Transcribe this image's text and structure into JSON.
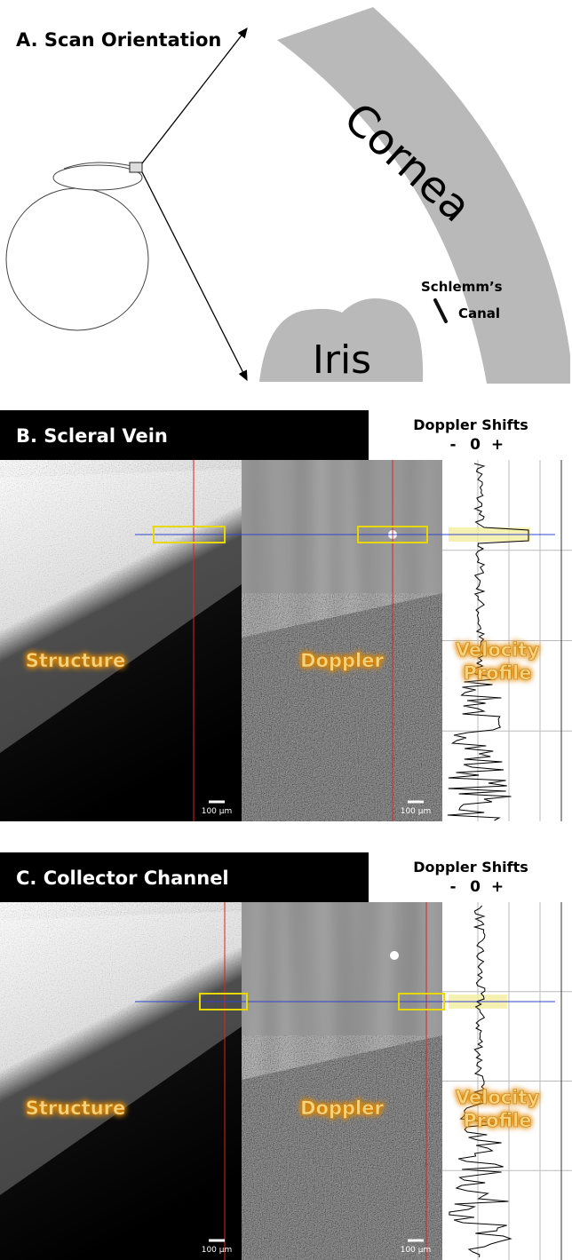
{
  "panel_a": {
    "title": "A.  Scan Orientation",
    "cornea": "Cornea",
    "schlemm": "Schlemm’s",
    "canal": "Canal",
    "iris": "Iris"
  },
  "panel_b": {
    "title": "B.  Scleral Vein",
    "axis_title": "Doppler Shifts",
    "axis_labels": [
      "-",
      "0",
      "+"
    ],
    "structure": "Structure",
    "doppler": "Doppler",
    "velocity": "Velocity",
    "profile": "Profile",
    "scale_bars": [
      "100 µm",
      "100 µm"
    ]
  },
  "panel_c": {
    "title": "C.  Collector Channel",
    "axis_title": "Doppler Shifts",
    "axis_labels": [
      "-",
      "0",
      "+"
    ],
    "structure": "Structure",
    "doppler": "Doppler",
    "velocity": "Velocity",
    "profile": "Profile",
    "scale_bars": [
      "100 µm",
      "100 µm"
    ]
  }
}
